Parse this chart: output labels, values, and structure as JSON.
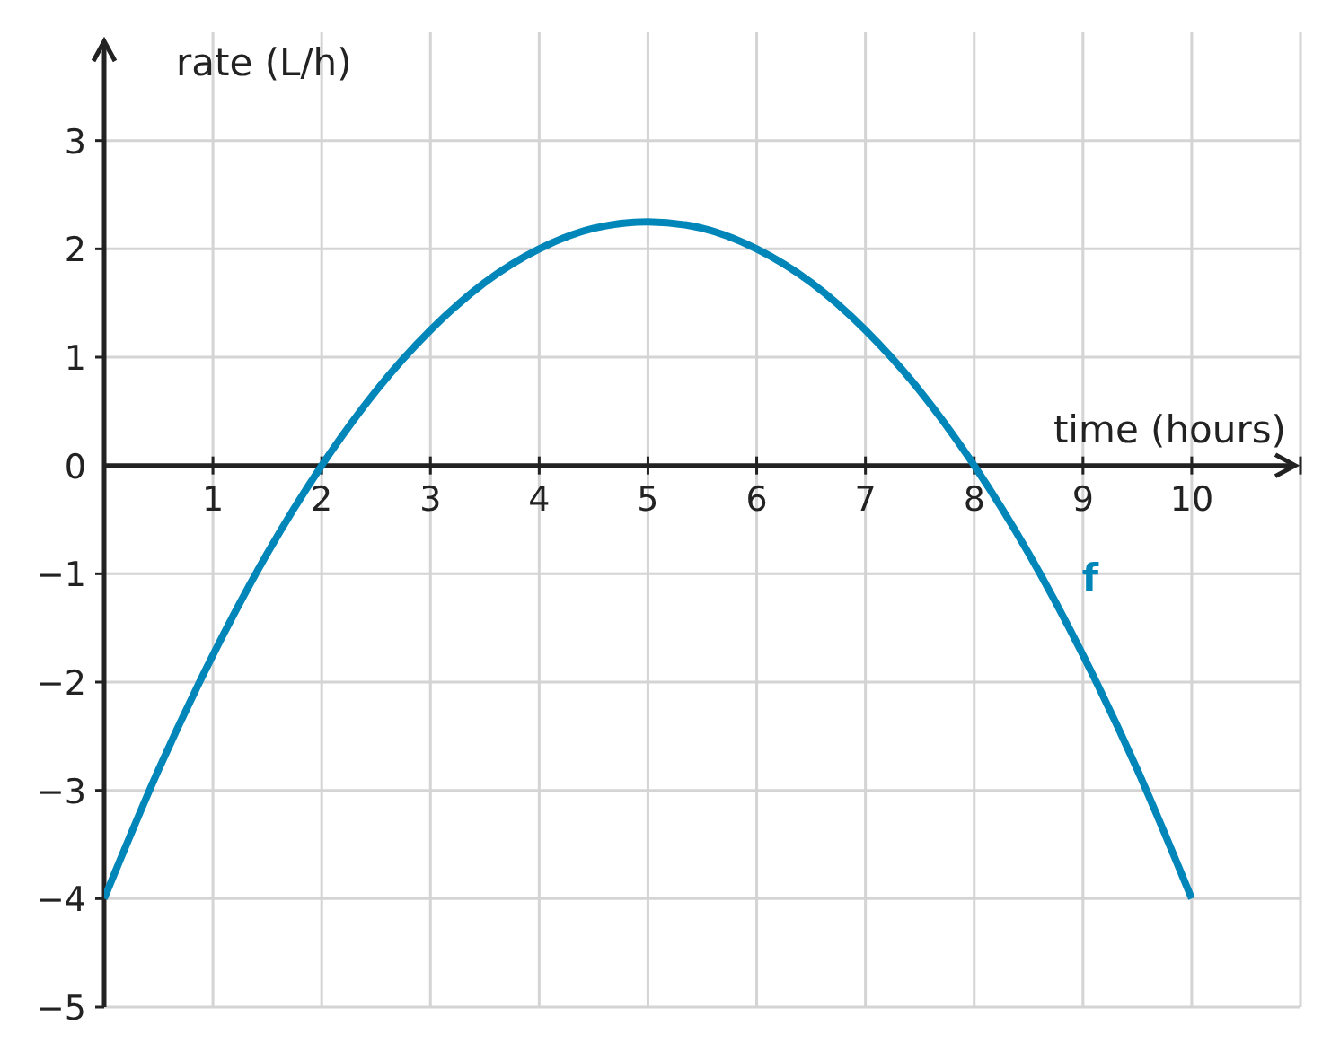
{
  "chart_data": {
    "type": "line",
    "xlabel": "time (hours)",
    "ylabel": "rate (L/h)",
    "x": [
      0,
      0.5,
      1,
      1.5,
      2,
      2.5,
      3,
      3.5,
      4,
      4.5,
      5,
      5.5,
      6,
      6.5,
      7,
      7.5,
      8,
      8.5,
      9,
      9.5,
      10
    ],
    "series": [
      {
        "name": "f",
        "color": "#0086b8",
        "values": [
          -4,
          -2.81,
          -1.75,
          -0.81,
          0,
          0.69,
          1.25,
          1.69,
          2,
          2.19,
          2.25,
          2.19,
          2,
          1.69,
          1.25,
          0.69,
          0,
          -0.81,
          -1.75,
          -2.81,
          -4
        ]
      }
    ],
    "xlim": [
      0,
      11
    ],
    "ylim": [
      -5,
      4
    ],
    "xticks": [
      1,
      2,
      3,
      4,
      5,
      6,
      7,
      8,
      9,
      10,
      {
        "value": 11,
        "label": null
      }
    ],
    "yticks": [
      -5,
      -4,
      -3,
      -2,
      -1,
      0,
      1,
      2,
      3
    ],
    "grid": true,
    "marker": "none",
    "line_style": "solid"
  }
}
